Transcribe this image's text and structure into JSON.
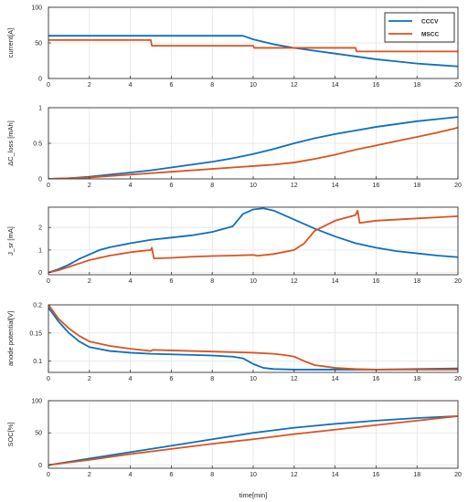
{
  "figure": {
    "xlabel": "time[min]",
    "legend": {
      "placement": "top-right",
      "entries": [
        "CCCV",
        "MSCC"
      ]
    }
  },
  "colors": {
    "CCCV": "#0c6fbf",
    "MSCC": "#d9531e",
    "grid": "#e3e3e3",
    "axis": "#333333"
  },
  "chart_data": [
    {
      "type": "line",
      "ylabel": "current[A]",
      "xlim": [
        0,
        20
      ],
      "ylim": [
        0,
        100
      ],
      "xticks": [
        0,
        2,
        4,
        6,
        8,
        10,
        12,
        14,
        16,
        18,
        20
      ],
      "yticks": [
        0,
        50,
        100
      ],
      "grid": true,
      "legend": "top-right",
      "series": [
        {
          "name": "CCCV",
          "x": [
            0,
            9.5,
            10,
            11,
            12,
            13,
            14,
            15,
            16,
            17,
            18,
            19,
            20
          ],
          "y": [
            60,
            60,
            55,
            48,
            43,
            39,
            35,
            31,
            27,
            24,
            21,
            19,
            17
          ]
        },
        {
          "name": "MSCC",
          "x": [
            0,
            5,
            5.05,
            10,
            10.05,
            15,
            15.05,
            20
          ],
          "y": [
            54,
            54,
            46,
            46,
            43,
            43,
            38,
            38
          ]
        }
      ]
    },
    {
      "type": "line",
      "ylabel": "ΔC_loss [mAh]",
      "xlim": [
        0,
        20
      ],
      "ylim": [
        0,
        1
      ],
      "xticks": [
        0,
        2,
        4,
        6,
        8,
        10,
        12,
        14,
        16,
        18,
        20
      ],
      "yticks": [
        0,
        0.5,
        1
      ],
      "grid": true,
      "series": [
        {
          "name": "CCCV",
          "x": [
            0,
            1,
            2,
            3,
            4,
            5,
            6,
            7,
            8,
            9,
            10,
            11,
            12,
            13,
            14,
            15,
            16,
            17,
            18,
            19,
            20
          ],
          "y": [
            0,
            0.01,
            0.03,
            0.06,
            0.09,
            0.12,
            0.16,
            0.2,
            0.24,
            0.29,
            0.35,
            0.42,
            0.5,
            0.57,
            0.63,
            0.68,
            0.73,
            0.77,
            0.81,
            0.84,
            0.87
          ]
        },
        {
          "name": "MSCC",
          "x": [
            0,
            1,
            2,
            3,
            4,
            5,
            6,
            7,
            8,
            9,
            10,
            11,
            12,
            13,
            14,
            15,
            16,
            17,
            18,
            19,
            20
          ],
          "y": [
            0,
            0.01,
            0.02,
            0.04,
            0.06,
            0.08,
            0.1,
            0.12,
            0.14,
            0.16,
            0.18,
            0.2,
            0.23,
            0.28,
            0.34,
            0.41,
            0.47,
            0.53,
            0.59,
            0.65,
            0.72
          ]
        }
      ]
    },
    {
      "type": "line",
      "ylabel": "J_sr [mA]",
      "xlim": [
        0,
        20
      ],
      "ylim": [
        -0.1,
        2.9
      ],
      "xticks": [
        0,
        2,
        4,
        6,
        8,
        10,
        12,
        14,
        16,
        18,
        20
      ],
      "yticks": [
        0,
        1,
        2
      ],
      "grid": true,
      "series": [
        {
          "name": "CCCV",
          "x": [
            0,
            0.5,
            1,
            1.5,
            2,
            2.5,
            3,
            4,
            5,
            6,
            7,
            8,
            9,
            9.5,
            10,
            10.5,
            11,
            12,
            13,
            14,
            15,
            16,
            17,
            18,
            19,
            20
          ],
          "y": [
            0,
            0.15,
            0.35,
            0.6,
            0.8,
            1.0,
            1.12,
            1.3,
            1.45,
            1.55,
            1.65,
            1.8,
            2.05,
            2.6,
            2.8,
            2.85,
            2.75,
            2.35,
            1.95,
            1.6,
            1.3,
            1.1,
            0.95,
            0.85,
            0.75,
            0.68
          ]
        },
        {
          "name": "MSCC",
          "x": [
            0,
            0.5,
            1,
            1.5,
            2,
            3,
            4,
            5,
            5.05,
            5.15,
            6,
            7,
            8,
            9,
            10,
            10.2,
            11,
            12,
            12.5,
            13,
            14,
            15,
            15.1,
            15.2,
            16,
            17,
            18,
            19,
            20
          ],
          "y": [
            0,
            0.1,
            0.25,
            0.4,
            0.55,
            0.75,
            0.9,
            1.0,
            1.1,
            0.62,
            0.65,
            0.7,
            0.73,
            0.75,
            0.78,
            0.74,
            0.82,
            1.0,
            1.3,
            1.85,
            2.3,
            2.55,
            2.75,
            2.2,
            2.3,
            2.35,
            2.4,
            2.45,
            2.5
          ]
        }
      ]
    },
    {
      "type": "line",
      "ylabel": "anode potential[V]",
      "xlim": [
        0,
        20
      ],
      "ylim": [
        0.08,
        0.2
      ],
      "xticks": [
        0,
        2,
        4,
        6,
        8,
        10,
        12,
        14,
        16,
        18,
        20
      ],
      "yticks": [
        0.1,
        0.15,
        0.2
      ],
      "grid": true,
      "series": [
        {
          "name": "CCCV",
          "x": [
            0,
            0.2,
            0.5,
            1,
            1.5,
            2,
            3,
            4,
            5,
            6,
            7,
            8,
            9,
            9.5,
            10,
            10.5,
            11,
            12,
            14,
            16,
            18,
            20
          ],
          "y": [
            0.195,
            0.185,
            0.17,
            0.15,
            0.135,
            0.125,
            0.118,
            0.115,
            0.113,
            0.112,
            0.111,
            0.11,
            0.108,
            0.105,
            0.095,
            0.088,
            0.086,
            0.085,
            0.085,
            0.085,
            0.086,
            0.087
          ]
        },
        {
          "name": "MSCC",
          "x": [
            0,
            0.2,
            0.5,
            1,
            1.5,
            2,
            3,
            4,
            5,
            5.1,
            6,
            8,
            10,
            11,
            11.5,
            12,
            12.5,
            13,
            14,
            15,
            16,
            18,
            20
          ],
          "y": [
            0.2,
            0.19,
            0.175,
            0.158,
            0.145,
            0.135,
            0.127,
            0.122,
            0.118,
            0.12,
            0.119,
            0.117,
            0.115,
            0.113,
            0.111,
            0.108,
            0.1,
            0.093,
            0.088,
            0.086,
            0.085,
            0.085,
            0.085
          ]
        }
      ]
    },
    {
      "type": "line",
      "ylabel": "SOC[%]",
      "xlim": [
        0,
        20
      ],
      "ylim": [
        -5,
        100
      ],
      "xticks": [
        0,
        2,
        4,
        6,
        8,
        10,
        12,
        14,
        16,
        18,
        20
      ],
      "yticks": [
        0,
        50,
        100
      ],
      "grid": true,
      "series": [
        {
          "name": "CCCV",
          "x": [
            0,
            2,
            4,
            6,
            8,
            10,
            12,
            14,
            16,
            18,
            20
          ],
          "y": [
            0,
            10,
            20,
            30,
            40,
            50,
            58,
            64,
            69,
            73,
            76
          ]
        },
        {
          "name": "MSCC",
          "x": [
            0,
            2,
            4,
            6,
            8,
            10,
            12,
            14,
            16,
            18,
            20
          ],
          "y": [
            0,
            8,
            17,
            25,
            33,
            40,
            48,
            55,
            62,
            69,
            76
          ]
        }
      ]
    }
  ]
}
